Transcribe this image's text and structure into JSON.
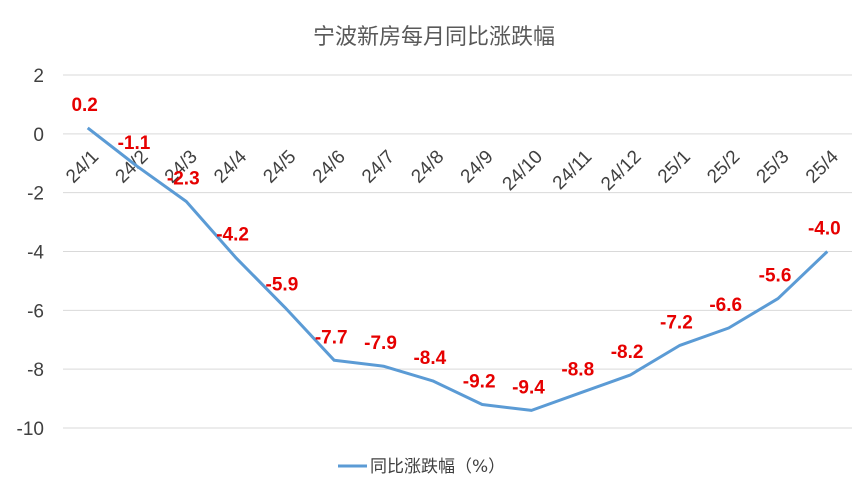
{
  "chart_data": {
    "type": "line",
    "title": "宁波新房每月同比涨跌幅",
    "xlabel": "",
    "ylabel": "",
    "categories": [
      "24/1",
      "24/2",
      "24/3",
      "24/4",
      "24/5",
      "24/6",
      "24/7",
      "24/8",
      "24/9",
      "24/10",
      "24/11",
      "24/12",
      "25/1",
      "25/2",
      "25/3",
      "25/4"
    ],
    "series": [
      {
        "name": "同比涨跌幅（%）",
        "values": [
          0.2,
          -1.1,
          -2.3,
          -4.2,
          -5.9,
          -7.7,
          -7.9,
          -8.4,
          -9.2,
          -9.4,
          -8.8,
          -8.2,
          -7.2,
          -6.6,
          -5.6,
          -4.0
        ],
        "data_labels": [
          "0.2",
          "-1.1",
          "-2.3",
          "-4.2",
          "-5.9",
          "-7.7",
          "-7.9",
          "-8.4",
          "-9.2",
          "-9.4",
          "-8.8",
          "-8.2",
          "-7.2",
          "-6.6",
          "-5.6",
          "-4.0"
        ],
        "color": "#5b9bd5"
      }
    ],
    "ylim": [
      -10,
      2
    ],
    "yticks": [
      2,
      0,
      -2,
      -4,
      -6,
      -8,
      -10
    ],
    "ytick_labels": [
      "2",
      "0",
      "-2",
      "-4",
      "-6",
      "-8",
      "-10"
    ],
    "grid": true,
    "legend_position": "bottom",
    "data_label_color": "#e60000",
    "gridline_color": "#d9d9d9"
  }
}
